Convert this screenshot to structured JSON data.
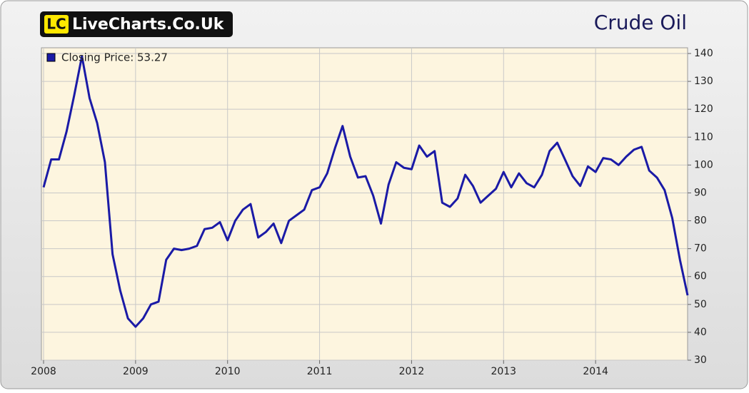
{
  "chart_data": {
    "type": "line",
    "logo": {
      "badge": "LC",
      "text": "LiveCharts.Co.Uk"
    },
    "title": "Crude Oil",
    "x": [
      2008,
      2008.083,
      2008.167,
      2008.25,
      2008.333,
      2008.417,
      2008.5,
      2008.583,
      2008.667,
      2008.75,
      2008.833,
      2008.917,
      2009,
      2009.083,
      2009.167,
      2009.25,
      2009.333,
      2009.417,
      2009.5,
      2009.583,
      2009.667,
      2009.75,
      2009.833,
      2009.917,
      2010,
      2010.083,
      2010.167,
      2010.25,
      2010.333,
      2010.417,
      2010.5,
      2010.583,
      2010.667,
      2010.75,
      2010.833,
      2010.917,
      2011,
      2011.083,
      2011.167,
      2011.25,
      2011.333,
      2011.417,
      2011.5,
      2011.583,
      2011.667,
      2011.75,
      2011.833,
      2011.917,
      2012,
      2012.083,
      2012.167,
      2012.25,
      2012.333,
      2012.417,
      2012.5,
      2012.583,
      2012.667,
      2012.75,
      2012.833,
      2012.917,
      2013,
      2013.083,
      2013.167,
      2013.25,
      2013.333,
      2013.417,
      2013.5,
      2013.583,
      2013.667,
      2013.75,
      2013.833,
      2013.917,
      2014,
      2014.083,
      2014.167,
      2014.25,
      2014.333,
      2014.417,
      2014.5,
      2014.583,
      2014.667,
      2014.75,
      2014.833,
      2014.917,
      2015
    ],
    "series": [
      {
        "name": "Closing Price: 53.27",
        "color": "#1a1aa6",
        "values": [
          92,
          102,
          102,
          112,
          125,
          139,
          124,
          115,
          101,
          68,
          55,
          45,
          42,
          45,
          50,
          51,
          66,
          70,
          69.5,
          70,
          71,
          77,
          77.5,
          79.5,
          73,
          80,
          84,
          86,
          74,
          76,
          79,
          72,
          80,
          82,
          84,
          91,
          92,
          97,
          106,
          114,
          103,
          95.5,
          96,
          89,
          79,
          93,
          101,
          99,
          98.5,
          107,
          103,
          105,
          86.5,
          85,
          88,
          96.5,
          92.5,
          86.5,
          89,
          91.5,
          97.5,
          92,
          97,
          93.5,
          92,
          96.5,
          105,
          108,
          102,
          96,
          92.5,
          99.5,
          97.5,
          102.5,
          102,
          100,
          103,
          105.5,
          106.5,
          98,
          95.5,
          91,
          81,
          66,
          53.27
        ]
      }
    ],
    "xlim": [
      2008,
      2015
    ],
    "xticks": [
      2008,
      2009,
      2010,
      2011,
      2012,
      2013,
      2014
    ],
    "ylim": [
      30,
      140
    ],
    "yticks": [
      30,
      40,
      50,
      60,
      70,
      80,
      90,
      100,
      110,
      120,
      130,
      140
    ],
    "grid": true
  }
}
